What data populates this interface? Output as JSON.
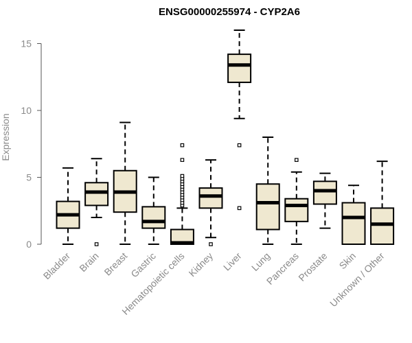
{
  "chart_data": {
    "type": "box",
    "title": "ENSG00000255974 - CYP2A6",
    "xlabel": "",
    "ylabel": "Expression",
    "ylim": [
      0,
      16
    ],
    "yticks": [
      0,
      5,
      10,
      15
    ],
    "grid": false,
    "box_fill": "#efe8d0",
    "box_stroke": "#000000",
    "categories": [
      "Bladder",
      "Brain",
      "Breast",
      "Gastric",
      "Hematopoietic cells",
      "Kidney",
      "Liver",
      "Lung",
      "Pancreas",
      "Prostate",
      "Skin",
      "Unknown / Other"
    ],
    "boxes": [
      {
        "min": 0.0,
        "q1": 1.2,
        "median": 2.2,
        "q3": 3.2,
        "max": 5.7,
        "outliers": []
      },
      {
        "min": 2.0,
        "q1": 2.9,
        "median": 3.9,
        "q3": 4.6,
        "max": 6.4,
        "outliers": [
          0.0
        ]
      },
      {
        "min": 0.0,
        "q1": 2.4,
        "median": 3.9,
        "q3": 5.5,
        "max": 9.1,
        "outliers": []
      },
      {
        "min": 0.0,
        "q1": 1.2,
        "median": 1.7,
        "q3": 2.8,
        "max": 5.0,
        "outliers": []
      },
      {
        "min": 0.0,
        "q1": 0.0,
        "median": 0.1,
        "q3": 1.1,
        "max": 2.7,
        "outliers": [
          2.9,
          3.1,
          3.3,
          3.5,
          3.7,
          3.9,
          4.1,
          4.3,
          4.5,
          4.7,
          4.9,
          5.1,
          6.3,
          7.4
        ]
      },
      {
        "min": 0.5,
        "q1": 2.7,
        "median": 3.6,
        "q3": 4.2,
        "max": 6.3,
        "outliers": [
          0.0
        ]
      },
      {
        "min": 9.4,
        "q1": 12.1,
        "median": 13.4,
        "q3": 14.2,
        "max": 16.0,
        "outliers": [
          7.4,
          2.7
        ]
      },
      {
        "min": 0.0,
        "q1": 1.1,
        "median": 3.1,
        "q3": 4.5,
        "max": 8.0,
        "outliers": []
      },
      {
        "min": 0.0,
        "q1": 1.7,
        "median": 2.9,
        "q3": 3.4,
        "max": 5.4,
        "outliers": [
          6.3
        ]
      },
      {
        "min": 1.2,
        "q1": 3.0,
        "median": 4.0,
        "q3": 4.7,
        "max": 5.3,
        "outliers": []
      },
      {
        "min": 0.0,
        "q1": 0.0,
        "median": 2.0,
        "q3": 3.1,
        "max": 4.4,
        "outliers": []
      },
      {
        "min": 0.0,
        "q1": 0.0,
        "median": 1.5,
        "q3": 2.7,
        "max": 6.2,
        "outliers": []
      }
    ]
  }
}
